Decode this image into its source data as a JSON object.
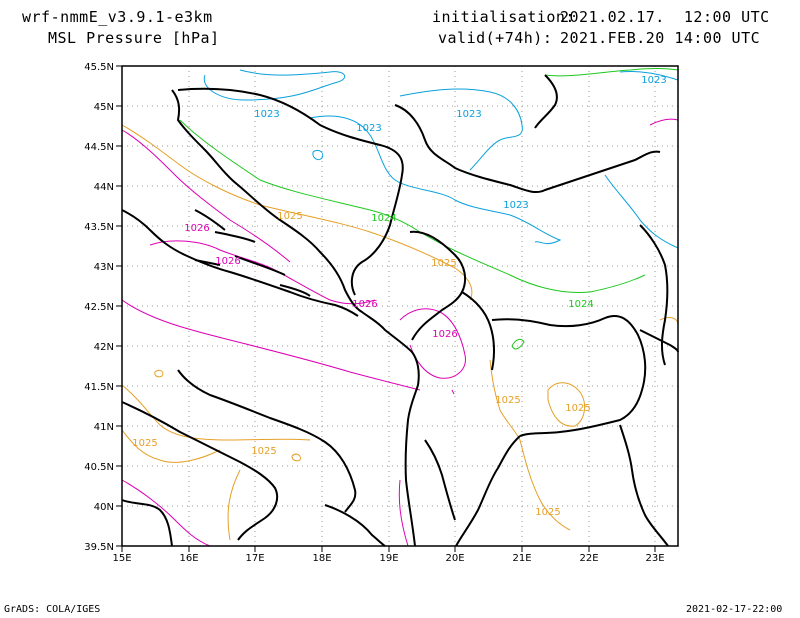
{
  "header": {
    "model": "wrf-nmmE_v3.9.1-e3km",
    "field": "MSL Pressure [hPa]",
    "init_label": "initialisation:",
    "init_value": "2021.02.17.  12:00 UTC",
    "valid_label": "valid(+74h):",
    "valid_value": "2021.FEB.20 14:00 UTC"
  },
  "footer": {
    "credit": "GrADS: COLA/IGES",
    "timestamp": "2021-02-17-22:00"
  },
  "map": {
    "lon_ticks": [
      "15E",
      "16E",
      "17E",
      "18E",
      "19E",
      "20E",
      "21E",
      "22E",
      "23E"
    ],
    "lat_ticks": [
      "39.5N",
      "40N",
      "40.5N",
      "41N",
      "41.5N",
      "42N",
      "42.5N",
      "43N",
      "43.5N",
      "44N",
      "44.5N",
      "45N",
      "45.5N"
    ],
    "contour_labels": [
      {
        "text": "1023",
        "color": "#0aa0dc"
      },
      {
        "text": "1023",
        "color": "#0aa0dc"
      },
      {
        "text": "1023",
        "color": "#0aa0dc"
      },
      {
        "text": "1023",
        "color": "#0aa0dc"
      },
      {
        "text": "1023",
        "color": "#0aa0dc"
      },
      {
        "text": "1024",
        "color": "#1ec81e"
      },
      {
        "text": "1024",
        "color": "#1ec81e"
      },
      {
        "text": "1025",
        "color": "#e6a028"
      },
      {
        "text": "1025",
        "color": "#e6a028"
      },
      {
        "text": "1025",
        "color": "#e6a028"
      },
      {
        "text": "1025",
        "color": "#e6a028"
      },
      {
        "text": "1025",
        "color": "#e6a028"
      },
      {
        "text": "1025",
        "color": "#e6a028"
      },
      {
        "text": "1025",
        "color": "#e6a028"
      },
      {
        "text": "1026",
        "color": "#dc00b4"
      },
      {
        "text": "1026",
        "color": "#dc00b4"
      },
      {
        "text": "1026",
        "color": "#dc00b4"
      },
      {
        "text": "1026",
        "color": "#dc00b4"
      }
    ]
  }
}
